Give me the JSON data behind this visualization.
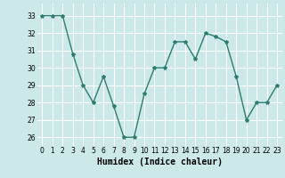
{
  "x": [
    0,
    1,
    2,
    3,
    4,
    5,
    6,
    7,
    8,
    9,
    10,
    11,
    12,
    13,
    14,
    15,
    16,
    17,
    18,
    19,
    20,
    21,
    22,
    23
  ],
  "y": [
    33,
    33,
    33,
    30.8,
    29,
    28,
    29.5,
    27.8,
    26,
    26,
    28.5,
    30,
    30,
    31.5,
    31.5,
    30.5,
    32,
    31.8,
    31.5,
    29.5,
    27,
    28,
    28,
    29
  ],
  "line_color": "#2d7d6e",
  "marker": "*",
  "marker_size": 3,
  "bg_color": "#cce8e8",
  "grid_color": "#ffffff",
  "xlabel": "Humidex (Indice chaleur)",
  "xlabel_fontsize": 7,
  "ylim": [
    25.5,
    33.7
  ],
  "xlim": [
    -0.5,
    23.5
  ],
  "yticks": [
    26,
    27,
    28,
    29,
    30,
    31,
    32,
    33
  ],
  "xticks": [
    0,
    1,
    2,
    3,
    4,
    5,
    6,
    7,
    8,
    9,
    10,
    11,
    12,
    13,
    14,
    15,
    16,
    17,
    18,
    19,
    20,
    21,
    22,
    23
  ],
  "tick_fontsize": 5.5,
  "line_width": 1.0
}
